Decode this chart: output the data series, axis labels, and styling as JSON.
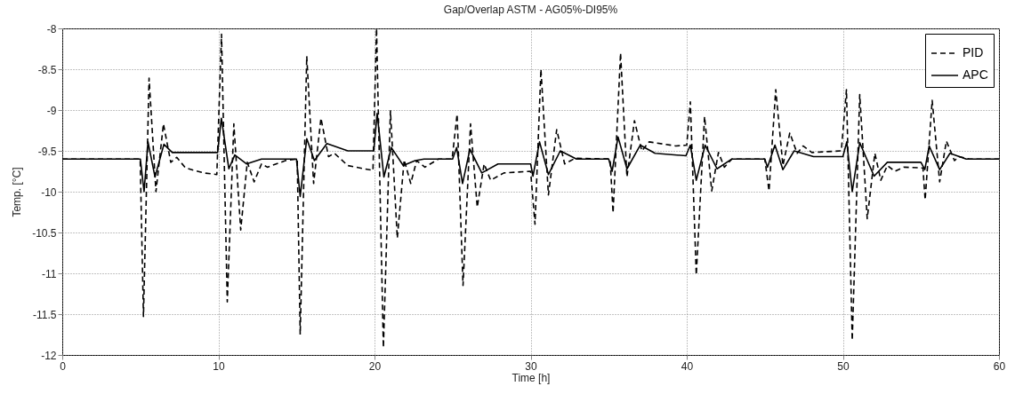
{
  "chart_data": {
    "type": "line",
    "title": "Gap/Overlap ASTM - AG05%-DI95%",
    "xlabel": "Time [h]",
    "ylabel": "Temp. [°C]",
    "xlim": [
      0,
      60
    ],
    "xticks": [
      0,
      10,
      20,
      30,
      40,
      50,
      60
    ],
    "ylim": [
      -12,
      -8
    ],
    "yticks": [
      -12,
      -11.5,
      -11,
      -10.5,
      -10,
      -9.5,
      -9,
      -8.5,
      -8
    ],
    "grid": true,
    "legend": "top right",
    "marker": "none",
    "series": [
      {
        "name": "PID",
        "color": "#000000",
        "line_style": "dashed",
        "x": [
          0,
          4.99,
          5.2,
          5.56,
          6.0,
          6.48,
          6.95,
          7.33,
          7.9,
          9.05,
          9.9,
          10.2,
          10.57,
          10.99,
          11.43,
          11.85,
          12.29,
          12.76,
          13.14,
          14.29,
          15.05,
          15.24,
          15.66,
          16.1,
          16.57,
          17.05,
          17.43,
          18.29,
          19.9,
          20.13,
          20.57,
          21.02,
          21.46,
          21.9,
          22.32,
          22.7,
          23.23,
          24.1,
          24.97,
          25.29,
          25.67,
          26.15,
          26.58,
          27.02,
          27.44,
          28.29,
          30.0,
          30.28,
          30.66,
          31.14,
          31.67,
          32.18,
          32.85,
          35.09,
          35.28,
          35.76,
          36.17,
          36.65,
          37.12,
          37.59,
          39.3,
          40.0,
          40.23,
          40.61,
          41.14,
          41.6,
          42.03,
          42.41,
          42.89,
          45.0,
          45.27,
          45.7,
          46.16,
          46.6,
          47.07,
          47.45,
          48.02,
          49.9,
          50.23,
          50.6,
          51.08,
          51.56,
          52.05,
          52.43,
          52.85,
          53.33,
          53.9,
          55.13,
          55.27,
          55.72,
          56.2,
          56.63,
          57.15,
          57.43,
          58.1,
          60
        ],
        "values": [
          -9.6,
          -9.6,
          -11.53,
          -8.61,
          -10.0,
          -9.17,
          -9.64,
          -9.58,
          -9.71,
          -9.77,
          -9.79,
          -8.07,
          -11.35,
          -9.17,
          -10.47,
          -9.64,
          -9.88,
          -9.66,
          -9.7,
          -9.62,
          -9.6,
          -11.75,
          -8.34,
          -9.9,
          -9.1,
          -9.57,
          -9.53,
          -9.68,
          -9.74,
          -8.0,
          -11.91,
          -9.01,
          -10.57,
          -9.61,
          -9.9,
          -9.62,
          -9.7,
          -9.6,
          -9.6,
          -9.05,
          -11.15,
          -9.17,
          -10.19,
          -9.66,
          -9.86,
          -9.77,
          -9.75,
          -10.4,
          -8.5,
          -10.04,
          -9.24,
          -9.66,
          -9.59,
          -9.6,
          -10.26,
          -8.3,
          -9.82,
          -9.13,
          -9.5,
          -9.39,
          -9.44,
          -9.43,
          -8.9,
          -11.02,
          -9.08,
          -9.99,
          -9.52,
          -9.7,
          -9.6,
          -9.6,
          -9.99,
          -8.75,
          -9.68,
          -9.28,
          -9.53,
          -9.44,
          -9.52,
          -9.5,
          -8.75,
          -11.82,
          -8.81,
          -10.33,
          -9.53,
          -9.86,
          -9.68,
          -9.75,
          -9.7,
          -9.71,
          -10.1,
          -8.88,
          -9.88,
          -9.38,
          -9.62,
          -9.57,
          -9.6,
          -9.6
        ]
      },
      {
        "name": "APC",
        "color": "#000000",
        "line_style": "solid",
        "x": [
          0,
          5.0,
          5.24,
          5.49,
          5.94,
          6.51,
          7.05,
          9.95,
          10.19,
          10.67,
          11.05,
          11.8,
          12.76,
          15.0,
          15.24,
          15.66,
          16.15,
          16.95,
          18.29,
          19.95,
          20.17,
          20.6,
          21.08,
          21.84,
          22.6,
          23.17,
          25.0,
          25.26,
          25.64,
          26.11,
          26.87,
          27.91,
          30.0,
          30.15,
          30.57,
          31.14,
          31.9,
          32.94,
          35.0,
          35.22,
          35.6,
          36.17,
          37.02,
          37.97,
          39.95,
          40.23,
          40.61,
          41.18,
          41.94,
          42.89,
          45.0,
          45.17,
          45.65,
          46.16,
          46.88,
          48.12,
          50.0,
          50.25,
          50.6,
          51.08,
          52.0,
          52.85,
          55.0,
          55.25,
          55.53,
          56.2,
          56.86,
          57.9,
          60
        ],
        "values": [
          -9.6,
          -9.6,
          -10.0,
          -9.39,
          -9.82,
          -9.42,
          -9.52,
          -9.52,
          -9.1,
          -9.72,
          -9.55,
          -9.66,
          -9.6,
          -9.6,
          -10.06,
          -9.35,
          -9.62,
          -9.41,
          -9.5,
          -9.5,
          -9.04,
          -9.82,
          -9.46,
          -9.68,
          -9.62,
          -9.6,
          -9.6,
          -9.46,
          -9.9,
          -9.48,
          -9.77,
          -9.66,
          -9.66,
          -9.81,
          -9.39,
          -9.79,
          -9.5,
          -9.6,
          -9.6,
          -9.75,
          -9.33,
          -9.72,
          -9.43,
          -9.53,
          -9.56,
          -9.43,
          -9.86,
          -9.43,
          -9.72,
          -9.6,
          -9.6,
          -9.7,
          -9.43,
          -9.73,
          -9.5,
          -9.57,
          -9.57,
          -9.39,
          -10.0,
          -9.4,
          -9.81,
          -9.64,
          -9.64,
          -9.73,
          -9.44,
          -9.73,
          -9.53,
          -9.6,
          -9.6
        ]
      }
    ]
  }
}
